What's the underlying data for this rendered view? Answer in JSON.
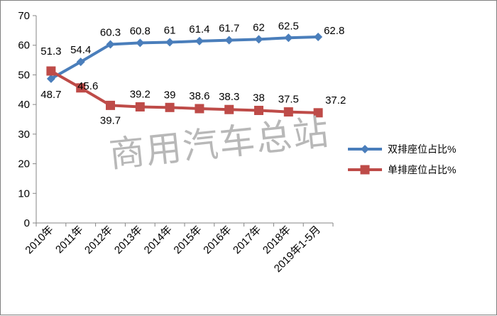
{
  "watermark": "商用汽车总站",
  "chart_data": {
    "type": "line",
    "categories": [
      "2010年",
      "2011年",
      "2012年",
      "2013年",
      "2014年",
      "2015年",
      "2016年",
      "2017年",
      "2018年",
      "2019年1-5月"
    ],
    "ylim": [
      0,
      70
    ],
    "yticks": [
      0,
      10,
      20,
      30,
      40,
      50,
      60,
      70
    ],
    "grid": false,
    "legend_position": "right",
    "series": [
      {
        "name": "双排座位占比%",
        "values": [
          48.7,
          54.4,
          60.3,
          60.8,
          61,
          61.4,
          61.7,
          62,
          62.5,
          62.8
        ],
        "color": "#4a7ebb",
        "marker": "diamond"
      },
      {
        "name": "单排座位占比%",
        "values": [
          51.3,
          45.6,
          39.7,
          39.2,
          39,
          38.6,
          38.3,
          38,
          37.5,
          37.2
        ],
        "color": "#be4b48",
        "marker": "square"
      }
    ]
  }
}
